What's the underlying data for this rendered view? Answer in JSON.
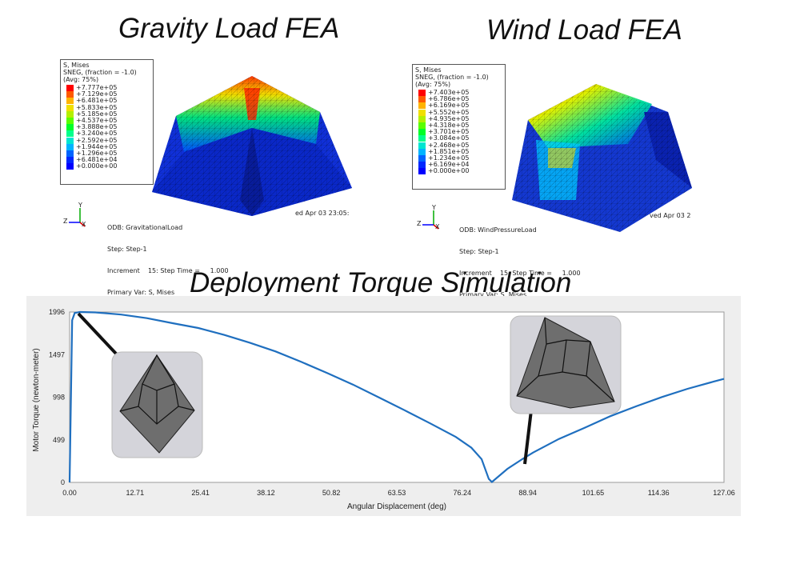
{
  "titles": {
    "gravity": "Gravity Load FEA",
    "wind": "Wind Load FEA",
    "torque": "Deployment Torque Simulation"
  },
  "gravity_panel": {
    "legend_header": [
      "S, Mises",
      "SNEG, (fraction = -1.0)",
      "(Avg: 75%)"
    ],
    "legend_values": [
      "+7.777e+05",
      "+7.129e+05",
      "+6.481e+05",
      "+5.833e+05",
      "+5.185e+05",
      "+4.537e+05",
      "+3.888e+05",
      "+3.240e+05",
      "+2.592e+05",
      "+1.944e+05",
      "+1.296e+05",
      "+6.481e+04",
      "+0.000e+00"
    ],
    "odb_text": [
      "ODB: GravitationalLoad",
      "Step: Step-1",
      "Increment    15: Step Time =     1.000",
      "Primary Var: S, Mises"
    ],
    "odb_date": "ed Apr 03 23:05:"
  },
  "wind_panel": {
    "legend_header": [
      "S, Mises",
      "SNEG, (fraction = -1.0)",
      "(Avg: 75%)"
    ],
    "legend_values": [
      "+7.403e+05",
      "+6.786e+05",
      "+6.169e+05",
      "+5.552e+05",
      "+4.935e+05",
      "+4.318e+05",
      "+3.701e+05",
      "+3.084e+05",
      "+2.468e+05",
      "+1.851e+05",
      "+1.234e+05",
      "+6.169e+04",
      "+0.000e+00"
    ],
    "odb_text": [
      "ODB: WindPressureLoad",
      "Step: Step-1",
      "Increment    15: Step Time =     1.000",
      "Primary Var: S, Mises"
    ],
    "odb_date": "ved Apr 03 2"
  },
  "axis_triad": {
    "y": "Y",
    "z": "Z",
    "x": "X"
  },
  "legend_colors": [
    "#ff0000",
    "#ff5a00",
    "#ffb400",
    "#f0e000",
    "#b4f000",
    "#5aff00",
    "#00ff28",
    "#00ff8c",
    "#00e6d2",
    "#00b4ff",
    "#0064ff",
    "#0028ff",
    "#0000ff"
  ],
  "chart_data": {
    "type": "line",
    "xlabel": "Angular Displacement (deg)",
    "ylabel": "Motor Torque (newton-meter)",
    "x_ticks": [
      "0.00",
      "12.71",
      "25.41",
      "38.12",
      "50.82",
      "63.53",
      "76.24",
      "88.94",
      "101.65",
      "114.36",
      "127.06"
    ],
    "y_ticks": [
      "1996",
      "1497",
      "998",
      "499",
      "0"
    ],
    "xlim": [
      0,
      127.06
    ],
    "ylim": [
      0,
      1996
    ],
    "line_color": "#1f6fbf",
    "series": [
      {
        "x": [
          0,
          0.5,
          1,
          2,
          5,
          10,
          15,
          20,
          25,
          30,
          35,
          40,
          45,
          50,
          55,
          60,
          65,
          70,
          75,
          78,
          80,
          81.4,
          82,
          85,
          88,
          90,
          95,
          100,
          105,
          110,
          115,
          120,
          125,
          127.06
        ],
        "y": [
          0,
          1900,
          1985,
          1996,
          1991,
          1966,
          1924,
          1865,
          1809,
          1728,
          1636,
          1534,
          1411,
          1282,
          1146,
          997,
          846,
          692,
          532,
          407,
          273,
          40,
          5,
          158,
          276,
          350,
          509,
          640,
          776,
          891,
          1000,
          1096,
          1180,
          1213
        ]
      }
    ]
  },
  "insets": {
    "left": {
      "alt": "folded polyhedron mechanism render"
    },
    "right": {
      "alt": "deployed polyhedron mechanism render"
    }
  }
}
